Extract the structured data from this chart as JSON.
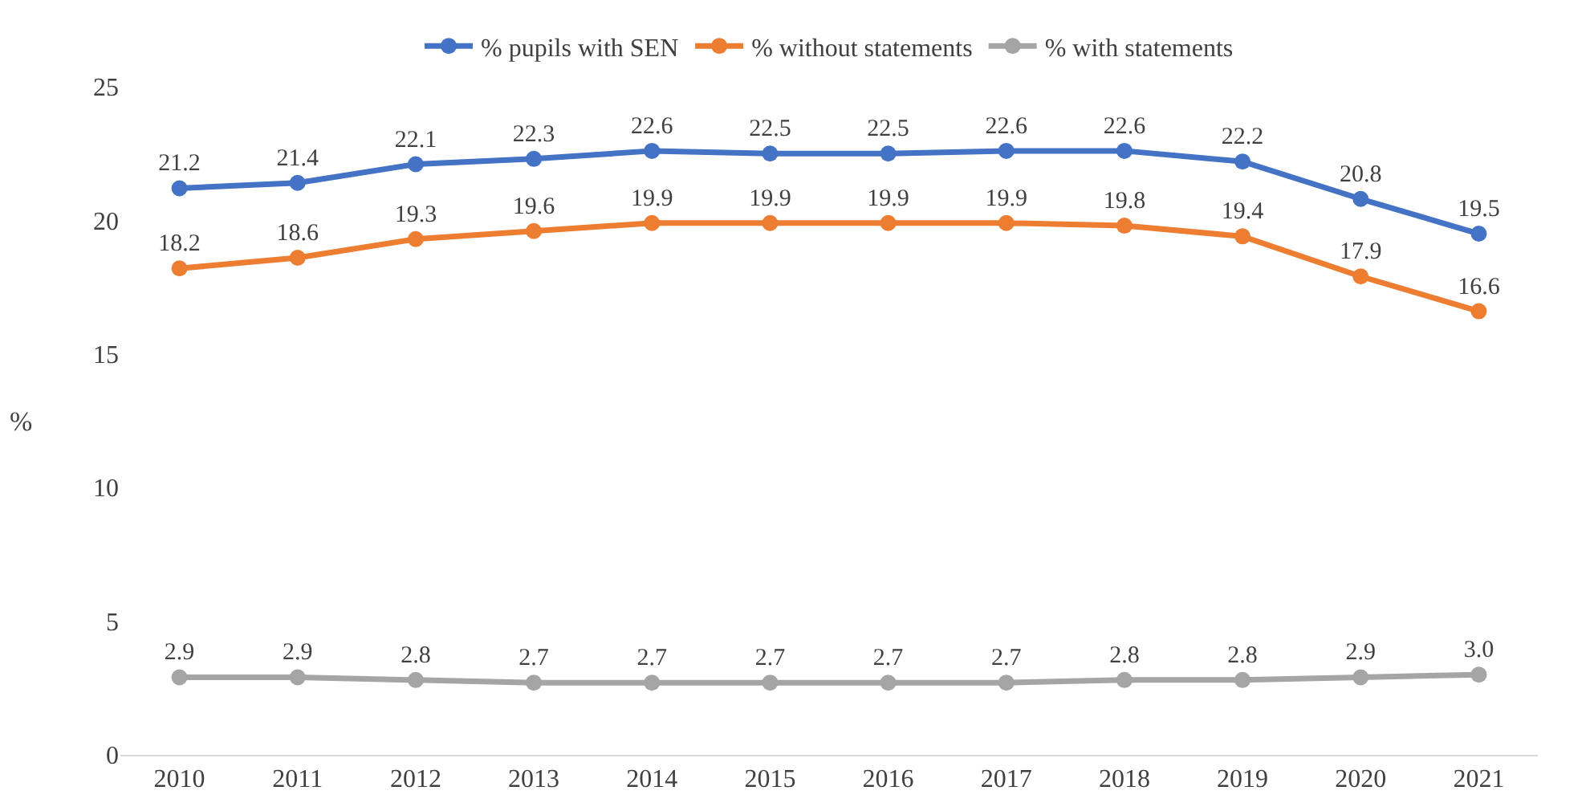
{
  "chart_data": {
    "type": "line",
    "ylabel": "%",
    "categories": [
      "2010",
      "2011",
      "2012",
      "2013",
      "2014",
      "2015",
      "2016",
      "2017",
      "2018",
      "2019",
      "2020",
      "2021"
    ],
    "series": [
      {
        "name": "% pupils with SEN",
        "color": "#4472c4",
        "values": [
          21.2,
          21.4,
          22.1,
          22.3,
          22.6,
          22.5,
          22.5,
          22.6,
          22.6,
          22.2,
          20.8,
          19.5
        ],
        "value_labels": [
          "21.2",
          "21.4",
          "22.1",
          "22.3",
          "22.6",
          "22.5",
          "22.5",
          "22.6",
          "22.6",
          "22.2",
          "20.8",
          "19.5"
        ]
      },
      {
        "name": "% without statements",
        "color": "#ed7d31",
        "values": [
          18.2,
          18.6,
          19.3,
          19.6,
          19.9,
          19.9,
          19.9,
          19.9,
          19.8,
          19.4,
          17.9,
          16.6
        ],
        "value_labels": [
          "18.2",
          "18.6",
          "19.3",
          "19.6",
          "19.9",
          "19.9",
          "19.9",
          "19.9",
          "19.8",
          "19.4",
          "17.9",
          "16.6"
        ]
      },
      {
        "name": "% with statements",
        "color": "#a5a5a5",
        "values": [
          2.9,
          2.9,
          2.8,
          2.7,
          2.7,
          2.7,
          2.7,
          2.7,
          2.8,
          2.8,
          2.9,
          3.0
        ],
        "value_labels": [
          "2.9",
          "2.9",
          "2.8",
          "2.7",
          "2.7",
          "2.7",
          "2.7",
          "2.7",
          "2.8",
          "2.8",
          "2.9",
          "3.0"
        ]
      }
    ],
    "ylim": [
      0,
      25
    ],
    "yticks": [
      0,
      5,
      10,
      15,
      20,
      25
    ],
    "grid": false,
    "legend": "top",
    "marker": "circle",
    "line_style": "solid"
  }
}
